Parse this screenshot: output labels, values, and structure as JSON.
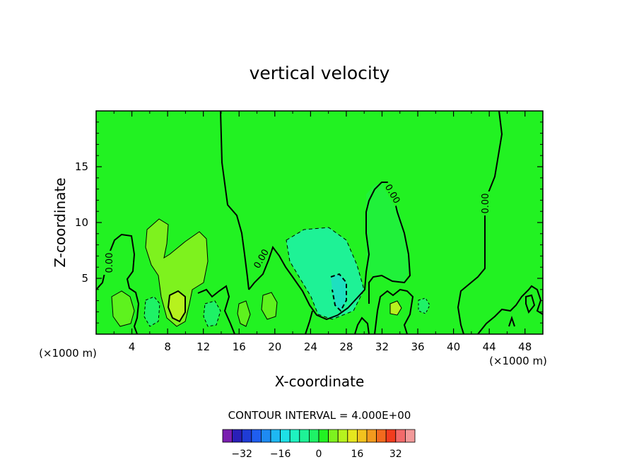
{
  "chart_data": {
    "type": "contour",
    "title": "vertical velocity",
    "xlabel": "X-coordinate",
    "ylabel": "Z-coordinate",
    "x_unit": "(×1000 m)",
    "z_unit": "(×1000 m)",
    "xlim": [
      0,
      50
    ],
    "ylim": [
      0,
      20
    ],
    "x_ticks": [
      "4",
      "8",
      "12",
      "16",
      "20",
      "24",
      "28",
      "32",
      "36",
      "40",
      "44",
      "48"
    ],
    "y_ticks": [
      "5",
      "10",
      "15"
    ],
    "contour_labels": [
      "0.00",
      "0.00",
      "0.00",
      "0.00"
    ],
    "contour_interval_text": "CONTOUR INTERVAL = 4.000E+00",
    "colorbar": {
      "levels": [
        -36,
        -32,
        -28,
        -24,
        -20,
        -16,
        -12,
        -8,
        -4,
        0,
        4,
        8,
        12,
        16,
        20,
        24,
        28,
        32,
        36
      ],
      "tick_labels": [
        "-32",
        "-16",
        "0",
        "16",
        "32"
      ],
      "colors": [
        "#7a1fb0",
        "#2a1fb8",
        "#1f3cd6",
        "#1f5ef0",
        "#1e8af2",
        "#1eb8f2",
        "#1ee0e6",
        "#1ef2c0",
        "#1ef296",
        "#1ef266",
        "#22f222",
        "#7ef21e",
        "#b6f21e",
        "#e6e61e",
        "#f2c21e",
        "#f29a1e",
        "#f26a1e",
        "#f23c1e",
        "#f26a6a",
        "#f29a9a"
      ]
    },
    "background_fill": "#22f222"
  }
}
